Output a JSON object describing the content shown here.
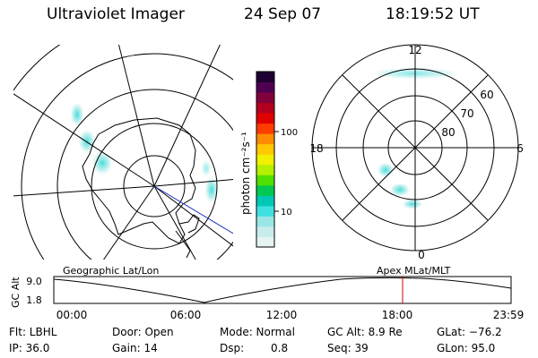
{
  "header": {
    "instrument": "Ultraviolet Imager",
    "date": "24 Sep 07",
    "time": "18:19:52 UT"
  },
  "colorbar": {
    "unit_label": "photon cm⁻²s⁻¹",
    "ticks": [
      "100",
      "10"
    ],
    "colors": [
      "#e6f4f4",
      "#c8ecec",
      "#9ae6e6",
      "#40e0e0",
      "#00c8b4",
      "#00c850",
      "#50e000",
      "#b4f000",
      "#f0f000",
      "#ffc800",
      "#ff8c00",
      "#ff3c00",
      "#e00000",
      "#b4001e",
      "#82003c",
      "#500050",
      "#1e0032"
    ]
  },
  "left_map": {
    "label": "Geographic Lat/Lon"
  },
  "right_map": {
    "label": "Apex  MLat/MLT",
    "mlt_labels": {
      "top": "12",
      "bottom": "0",
      "left": "18",
      "right": "6"
    },
    "lat_labels": [
      "60",
      "70",
      "80"
    ]
  },
  "altitude_plot": {
    "ylabel": "GC Alt",
    "yticks": [
      "9.0",
      "1.8"
    ],
    "xticks": [
      "00:00",
      "06:00",
      "12:00",
      "18:00",
      "23:59"
    ],
    "marker_color": "#cc0000"
  },
  "info": {
    "filter": "Flt: LBHL",
    "door": "Door: Open",
    "mode": "Mode: Normal",
    "gc_alt": "GC Alt: 8.9 Re",
    "glat": "GLat: −76.2",
    "ip": "IP: 36.0",
    "gain": "Gain: 14",
    "dsp_label": "Dsp:",
    "dsp_value": "0.8",
    "seq": "Seq: 39",
    "glon": "GLon: 95.0"
  }
}
